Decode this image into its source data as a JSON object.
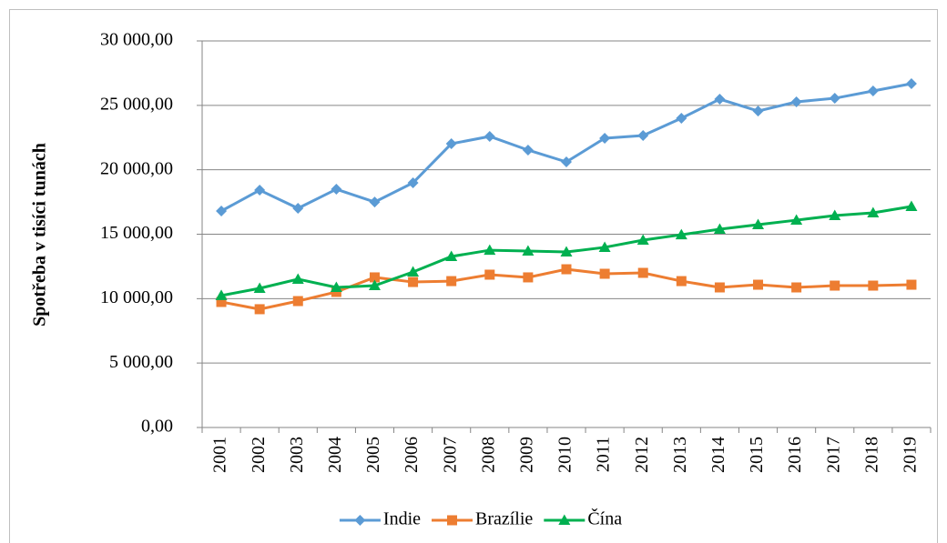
{
  "chart_data": {
    "type": "line",
    "y_label": "Spotřeba v tisíci tunách",
    "categories": [
      "2001",
      "2002",
      "2003",
      "2004",
      "2005",
      "2006",
      "2007",
      "2008",
      "2009",
      "2010",
      "2011",
      "2012",
      "2013",
      "2014",
      "2015",
      "2016",
      "2017",
      "2018",
      "2019"
    ],
    "series": [
      {
        "name": "Indie",
        "color": "#5b9bd5",
        "marker": "diamond",
        "values": [
          16800,
          18420,
          17010,
          18490,
          17500,
          18990,
          22020,
          22590,
          21530,
          20610,
          22450,
          22660,
          24000,
          25480,
          24560,
          25270,
          25550,
          26120,
          26680
        ]
      },
      {
        "name": "Brazílie",
        "color": "#ed7d31",
        "marker": "square",
        "values": [
          9740,
          9180,
          9810,
          10520,
          11650,
          11290,
          11360,
          11860,
          11650,
          12280,
          11930,
          12000,
          11360,
          10870,
          11080,
          10870,
          11010,
          11010,
          11080
        ]
      },
      {
        "name": "Čína",
        "color": "#00b050",
        "marker": "triangle",
        "values": [
          10240,
          10800,
          11510,
          10870,
          11010,
          12070,
          13270,
          13760,
          13690,
          13620,
          13980,
          14540,
          14960,
          15390,
          15740,
          16090,
          16450,
          16660,
          17150
        ]
      }
    ],
    "ylim": [
      0,
      30000
    ],
    "yticks": [
      {
        "value": 0,
        "label": "0,00"
      },
      {
        "value": 5000,
        "label": "5 000,00"
      },
      {
        "value": 10000,
        "label": "10 000,00"
      },
      {
        "value": 15000,
        "label": "15 000,00"
      },
      {
        "value": 20000,
        "label": "20 000,00"
      },
      {
        "value": 25000,
        "label": "25 000,00"
      },
      {
        "value": 30000,
        "label": "30 000,00"
      }
    ],
    "grid": true,
    "legend": "bottom"
  }
}
